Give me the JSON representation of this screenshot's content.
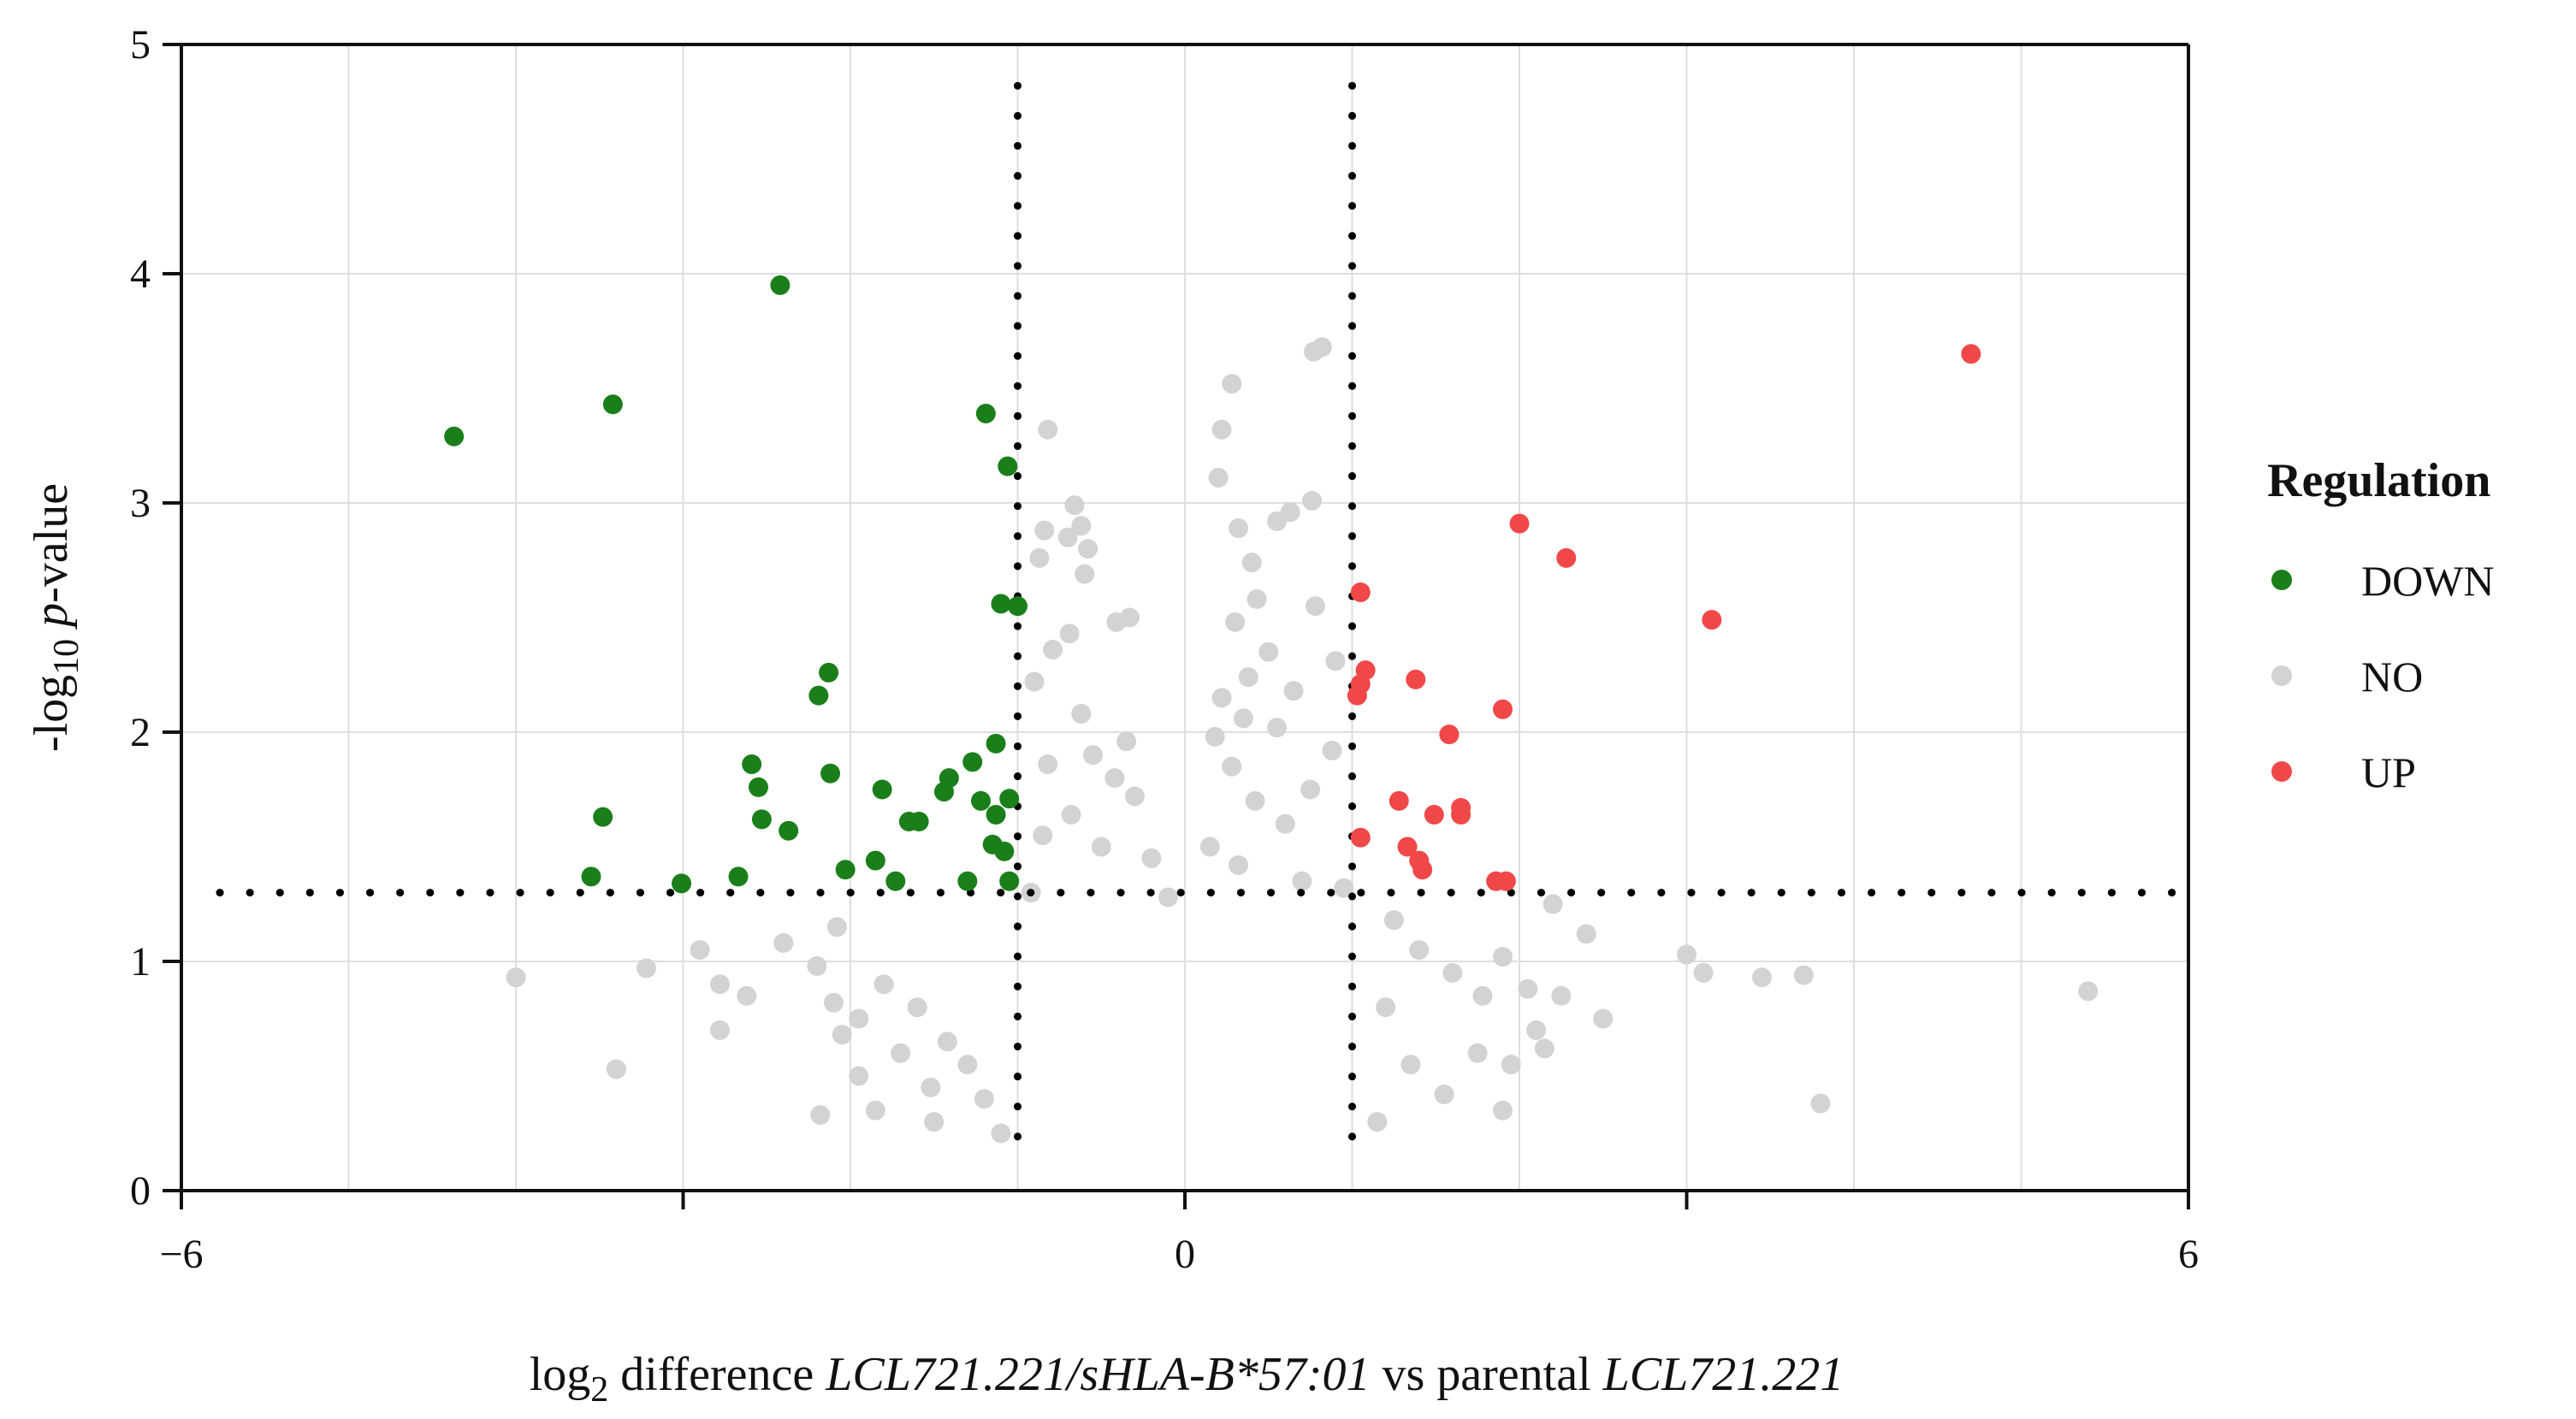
{
  "chart_data": {
    "type": "scatter",
    "subtype": "volcano",
    "title": "",
    "xlabel": {
      "parts": [
        {
          "text": "log",
          "style": "normal"
        },
        {
          "text": "2",
          "style": "sub"
        },
        {
          "text": "  difference ",
          "style": "normal"
        },
        {
          "text": "LCL721.221/sHLA-B*57:01",
          "style": "italic"
        },
        {
          "text": " vs parental ",
          "style": "normal"
        },
        {
          "text": "LCL721.221",
          "style": "italic"
        }
      ]
    },
    "ylabel": {
      "parts": [
        {
          "text": "-log",
          "style": "normal"
        },
        {
          "text": "10",
          "style": "sub"
        },
        {
          "text": " ",
          "style": "normal"
        },
        {
          "text": "p",
          "style": "italic"
        },
        {
          "text": "-value",
          "style": "normal"
        }
      ]
    },
    "xlim": [
      -6,
      6
    ],
    "ylim": [
      0,
      5
    ],
    "xticks": [
      -6,
      -3,
      0,
      3,
      6
    ],
    "xtick_labels": [
      "−6",
      "",
      "0",
      "",
      "6"
    ],
    "yticks": [
      0,
      1,
      2,
      3,
      4,
      5
    ],
    "ytick_labels": [
      "0",
      "1",
      "2",
      "3",
      "4",
      "5"
    ],
    "x_gridlines": [
      -6,
      -5,
      -4,
      -3,
      -2,
      -1,
      0,
      1,
      2,
      3,
      4,
      5,
      6
    ],
    "y_gridlines": [
      0,
      1,
      2,
      3,
      4,
      5
    ],
    "grid": true,
    "thresholds": {
      "x": [
        -1,
        1
      ],
      "y": 1.3
    },
    "legend": {
      "title": "Regulation",
      "position": "right",
      "entries": [
        {
          "label": "DOWN",
          "color": "#1a7f1a"
        },
        {
          "label": "NO",
          "color": "#d3d3d3"
        },
        {
          "label": "UP",
          "color": "#f04848"
        }
      ]
    },
    "series": [
      {
        "name": "DOWN",
        "color": "#1a7f1a",
        "points": [
          [
            -2.42,
            3.95
          ],
          [
            -3.42,
            3.43
          ],
          [
            -4.37,
            3.29
          ],
          [
            -1.19,
            3.39
          ],
          [
            -1.06,
            3.16
          ],
          [
            -1.1,
            2.56
          ],
          [
            -1.0,
            2.55
          ],
          [
            -2.13,
            2.26
          ],
          [
            -2.19,
            2.16
          ],
          [
            -1.13,
            1.95
          ],
          [
            -1.27,
            1.87
          ],
          [
            -1.41,
            1.8
          ],
          [
            -1.44,
            1.74
          ],
          [
            -1.22,
            1.7
          ],
          [
            -1.05,
            1.71
          ],
          [
            -2.59,
            1.86
          ],
          [
            -2.55,
            1.76
          ],
          [
            -2.12,
            1.82
          ],
          [
            -1.81,
            1.75
          ],
          [
            -1.13,
            1.64
          ],
          [
            -1.65,
            1.61
          ],
          [
            -1.59,
            1.61
          ],
          [
            -2.53,
            1.62
          ],
          [
            -2.37,
            1.57
          ],
          [
            -3.48,
            1.63
          ],
          [
            -1.15,
            1.51
          ],
          [
            -1.08,
            1.48
          ],
          [
            -1.85,
            1.44
          ],
          [
            -2.03,
            1.4
          ],
          [
            -1.73,
            1.35
          ],
          [
            -2.67,
            1.37
          ],
          [
            -3.01,
            1.34
          ],
          [
            -3.55,
            1.37
          ],
          [
            -1.3,
            1.35
          ],
          [
            -1.05,
            1.35
          ]
        ]
      },
      {
        "name": "UP",
        "color": "#f04848",
        "points": [
          [
            4.7,
            3.65
          ],
          [
            2.0,
            2.91
          ],
          [
            2.28,
            2.76
          ],
          [
            3.15,
            2.49
          ],
          [
            1.05,
            2.61
          ],
          [
            1.08,
            2.27
          ],
          [
            1.05,
            2.21
          ],
          [
            1.38,
            2.23
          ],
          [
            1.03,
            2.16
          ],
          [
            1.58,
            1.99
          ],
          [
            1.9,
            2.1
          ],
          [
            1.28,
            1.7
          ],
          [
            1.49,
            1.64
          ],
          [
            1.65,
            1.67
          ],
          [
            1.65,
            1.64
          ],
          [
            1.05,
            1.54
          ],
          [
            1.33,
            1.5
          ],
          [
            1.4,
            1.44
          ],
          [
            1.42,
            1.4
          ],
          [
            1.86,
            1.35
          ],
          [
            1.92,
            1.35
          ]
        ]
      },
      {
        "name": "NO",
        "color": "#d3d3d3",
        "points": [
          [
            0.77,
            3.66
          ],
          [
            0.82,
            3.68
          ],
          [
            0.28,
            3.52
          ],
          [
            0.22,
            3.32
          ],
          [
            0.2,
            3.11
          ],
          [
            0.76,
            3.01
          ],
          [
            0.63,
            2.96
          ],
          [
            0.55,
            2.92
          ],
          [
            0.32,
            2.89
          ],
          [
            -0.82,
            3.32
          ],
          [
            -0.66,
            2.99
          ],
          [
            -0.62,
            2.9
          ],
          [
            -0.84,
            2.88
          ],
          [
            -0.7,
            2.85
          ],
          [
            -0.58,
            2.8
          ],
          [
            -0.6,
            2.69
          ],
          [
            -0.87,
            2.76
          ],
          [
            0.4,
            2.74
          ],
          [
            0.43,
            2.58
          ],
          [
            0.78,
            2.55
          ],
          [
            0.3,
            2.48
          ],
          [
            -0.33,
            2.5
          ],
          [
            -0.41,
            2.48
          ],
          [
            -0.69,
            2.43
          ],
          [
            -0.79,
            2.36
          ],
          [
            -0.9,
            2.22
          ],
          [
            0.5,
            2.35
          ],
          [
            0.9,
            2.31
          ],
          [
            0.38,
            2.24
          ],
          [
            0.65,
            2.18
          ],
          [
            0.22,
            2.15
          ],
          [
            0.35,
            2.06
          ],
          [
            0.55,
            2.02
          ],
          [
            0.18,
            1.98
          ],
          [
            -0.62,
            2.08
          ],
          [
            -0.35,
            1.96
          ],
          [
            -0.55,
            1.9
          ],
          [
            -0.82,
            1.86
          ],
          [
            -0.42,
            1.8
          ],
          [
            0.88,
            1.92
          ],
          [
            0.75,
            1.75
          ],
          [
            0.28,
            1.85
          ],
          [
            0.42,
            1.7
          ],
          [
            0.6,
            1.6
          ],
          [
            -0.3,
            1.72
          ],
          [
            -0.68,
            1.64
          ],
          [
            -0.85,
            1.55
          ],
          [
            -0.5,
            1.5
          ],
          [
            -0.2,
            1.45
          ],
          [
            0.15,
            1.5
          ],
          [
            0.32,
            1.42
          ],
          [
            0.7,
            1.35
          ],
          [
            0.95,
            1.32
          ],
          [
            -0.92,
            1.3
          ],
          [
            -0.1,
            1.28
          ],
          [
            2.2,
            1.25
          ],
          [
            2.4,
            1.12
          ],
          [
            3.0,
            1.03
          ],
          [
            3.1,
            0.95
          ],
          [
            3.45,
            0.93
          ],
          [
            3.7,
            0.94
          ],
          [
            5.4,
            0.87
          ],
          [
            3.8,
            0.38
          ],
          [
            -4.0,
            0.93
          ],
          [
            -3.4,
            0.53
          ],
          [
            -3.22,
            0.97
          ],
          [
            -2.9,
            1.05
          ],
          [
            -2.78,
            0.9
          ],
          [
            -2.62,
            0.85
          ],
          [
            -2.78,
            0.7
          ],
          [
            -2.4,
            1.08
          ],
          [
            -2.2,
            0.98
          ],
          [
            -2.08,
            1.15
          ],
          [
            -2.1,
            0.82
          ],
          [
            -1.95,
            0.75
          ],
          [
            -2.05,
            0.68
          ],
          [
            -1.8,
            0.9
          ],
          [
            -1.6,
            0.8
          ],
          [
            -1.95,
            0.5
          ],
          [
            -1.7,
            0.6
          ],
          [
            -1.52,
            0.45
          ],
          [
            -1.85,
            0.35
          ],
          [
            -1.42,
            0.65
          ],
          [
            -1.3,
            0.55
          ],
          [
            -1.5,
            0.3
          ],
          [
            -1.2,
            0.4
          ],
          [
            -1.1,
            0.25
          ],
          [
            -2.18,
            0.33
          ],
          [
            1.25,
            1.18
          ],
          [
            1.4,
            1.05
          ],
          [
            1.6,
            0.95
          ],
          [
            1.78,
            0.85
          ],
          [
            1.9,
            1.02
          ],
          [
            1.75,
            0.6
          ],
          [
            1.95,
            0.55
          ],
          [
            2.05,
            0.88
          ],
          [
            2.1,
            0.7
          ],
          [
            2.25,
            0.85
          ],
          [
            1.9,
            0.35
          ],
          [
            1.55,
            0.42
          ],
          [
            1.35,
            0.55
          ],
          [
            1.2,
            0.8
          ],
          [
            1.15,
            0.3
          ],
          [
            2.5,
            0.75
          ],
          [
            2.15,
            0.62
          ]
        ]
      }
    ]
  }
}
